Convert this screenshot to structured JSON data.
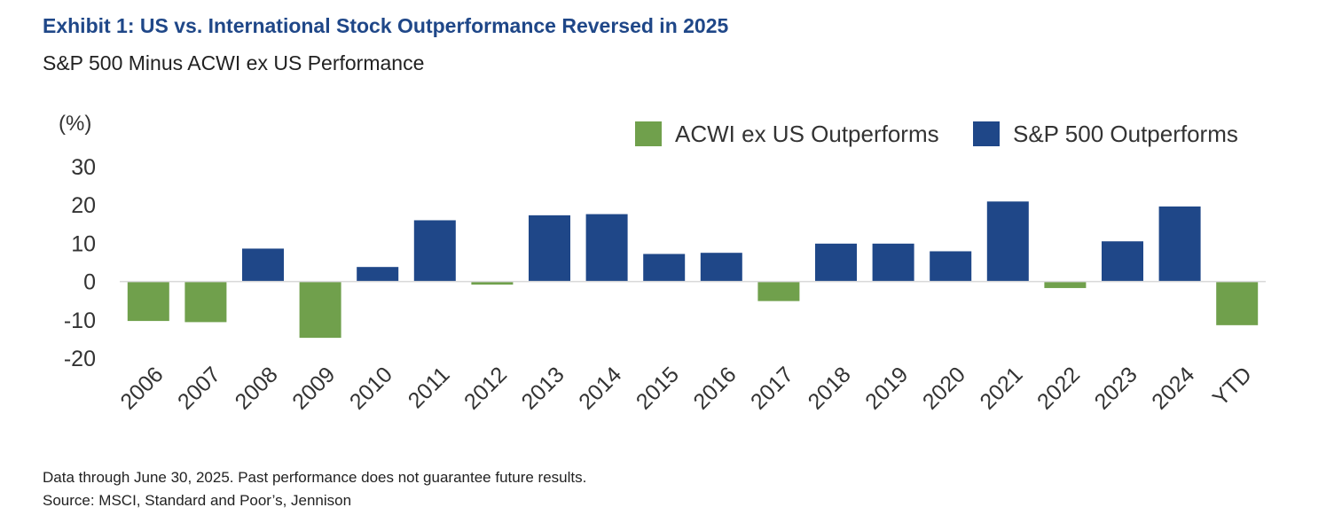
{
  "header": {
    "title": "Exhibit 1: US vs. International Stock Outperformance Reversed in 2025",
    "subtitle": "S&P 500 Minus ACWI ex US Performance"
  },
  "chart_data": {
    "type": "bar",
    "unit_label": "(%)",
    "categories": [
      "2006",
      "2007",
      "2008",
      "2009",
      "2010",
      "2011",
      "2012",
      "2013",
      "2014",
      "2015",
      "2016",
      "2017",
      "2018",
      "2019",
      "2020",
      "2021",
      "2022",
      "2023",
      "2024",
      "YTD"
    ],
    "values": [
      -10.3,
      -10.6,
      8.6,
      -14.7,
      3.8,
      16.0,
      -0.8,
      17.3,
      17.6,
      7.2,
      7.5,
      -5.1,
      9.9,
      9.9,
      7.9,
      20.9,
      -1.7,
      10.5,
      19.6,
      -11.4
    ],
    "ylim": [
      -20,
      30
    ],
    "yticks": [
      30,
      20,
      10,
      0,
      -10,
      -20
    ],
    "grid": false,
    "legend_position": "top-right",
    "legend": [
      {
        "label": "ACWI ex US Outperforms",
        "color": "#70a04c"
      },
      {
        "label": "S&P 500 Outperforms",
        "color": "#1f4788"
      }
    ],
    "colors": {
      "positive": "#1f4788",
      "negative": "#70a04c",
      "axis": "#d9d9d9"
    }
  },
  "footer": {
    "note": "Data through June 30, 2025. Past performance does not guarantee future results.",
    "source": "Source: MSCI, Standard and Poor’s, Jennison"
  }
}
